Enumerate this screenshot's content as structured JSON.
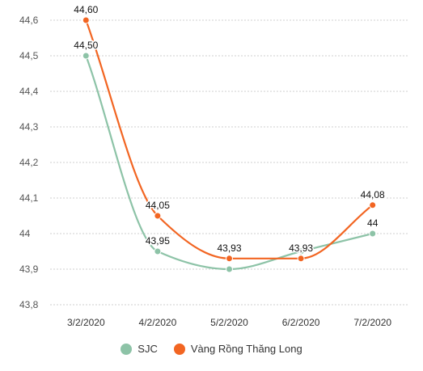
{
  "chart_data": {
    "type": "line",
    "categories": [
      "3/2/2020",
      "4/2/2020",
      "5/2/2020",
      "6/2/2020",
      "7/2/2020"
    ],
    "series": [
      {
        "name": "SJC",
        "values": [
          44.5,
          43.95,
          43.9,
          43.95,
          44.0
        ],
        "labels": [
          "44,50",
          "43,95",
          "",
          "",
          "44"
        ],
        "color": "#8dc3a7"
      },
      {
        "name": "Vàng Rồng Thăng Long",
        "values": [
          44.6,
          44.05,
          43.93,
          43.93,
          44.08
        ],
        "labels": [
          "44,60",
          "44,05",
          "43,93",
          "43,93",
          "44,08"
        ],
        "color": "#f26522"
      }
    ],
    "yticks": [
      "43,8",
      "43,9",
      "44",
      "44,1",
      "44,2",
      "44,3",
      "44,4",
      "44,5",
      "44,6"
    ],
    "ylim": [
      43.8,
      44.6
    ],
    "grid": "horizontal-dashed",
    "legend_position": "bottom-center"
  }
}
